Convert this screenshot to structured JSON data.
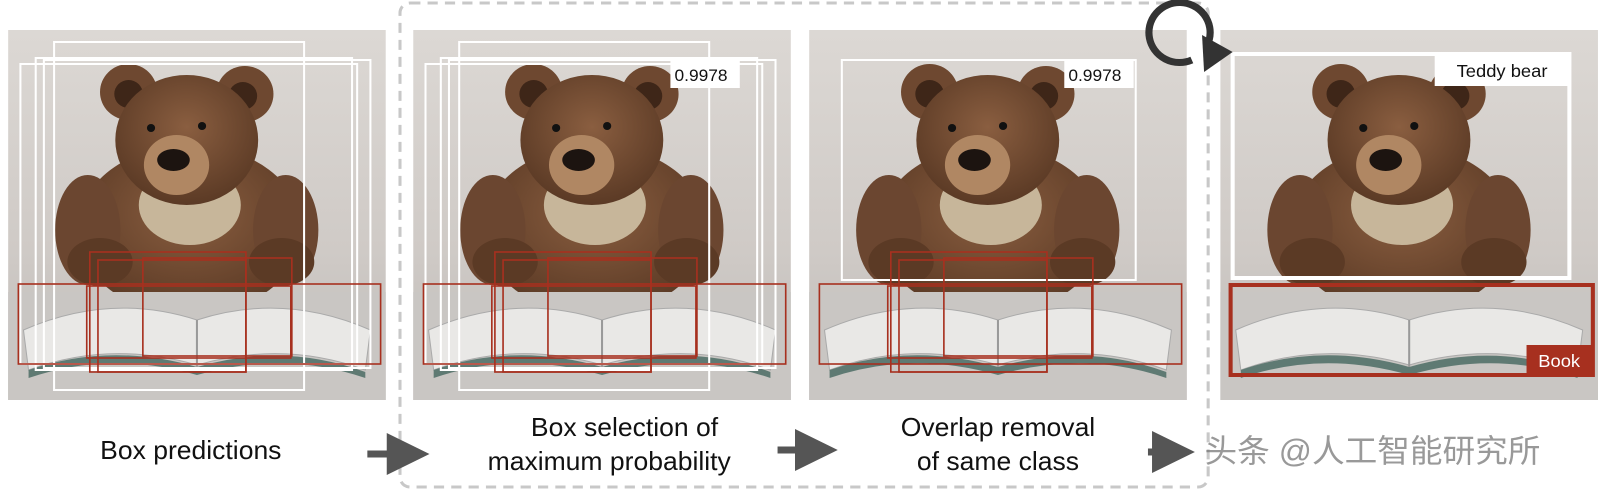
{
  "panels": [
    {
      "caption": [
        "Box predictions"
      ]
    },
    {
      "caption": [
        "Box selection of",
        "maximum probability"
      ],
      "score": "0.9978"
    },
    {
      "caption": [
        "Overlap removal",
        "of same class"
      ],
      "score": "0.9978"
    },
    {
      "labels": [
        "Teddy bear",
        "Book"
      ]
    }
  ],
  "watermark": "头条 @人工智能研究所"
}
